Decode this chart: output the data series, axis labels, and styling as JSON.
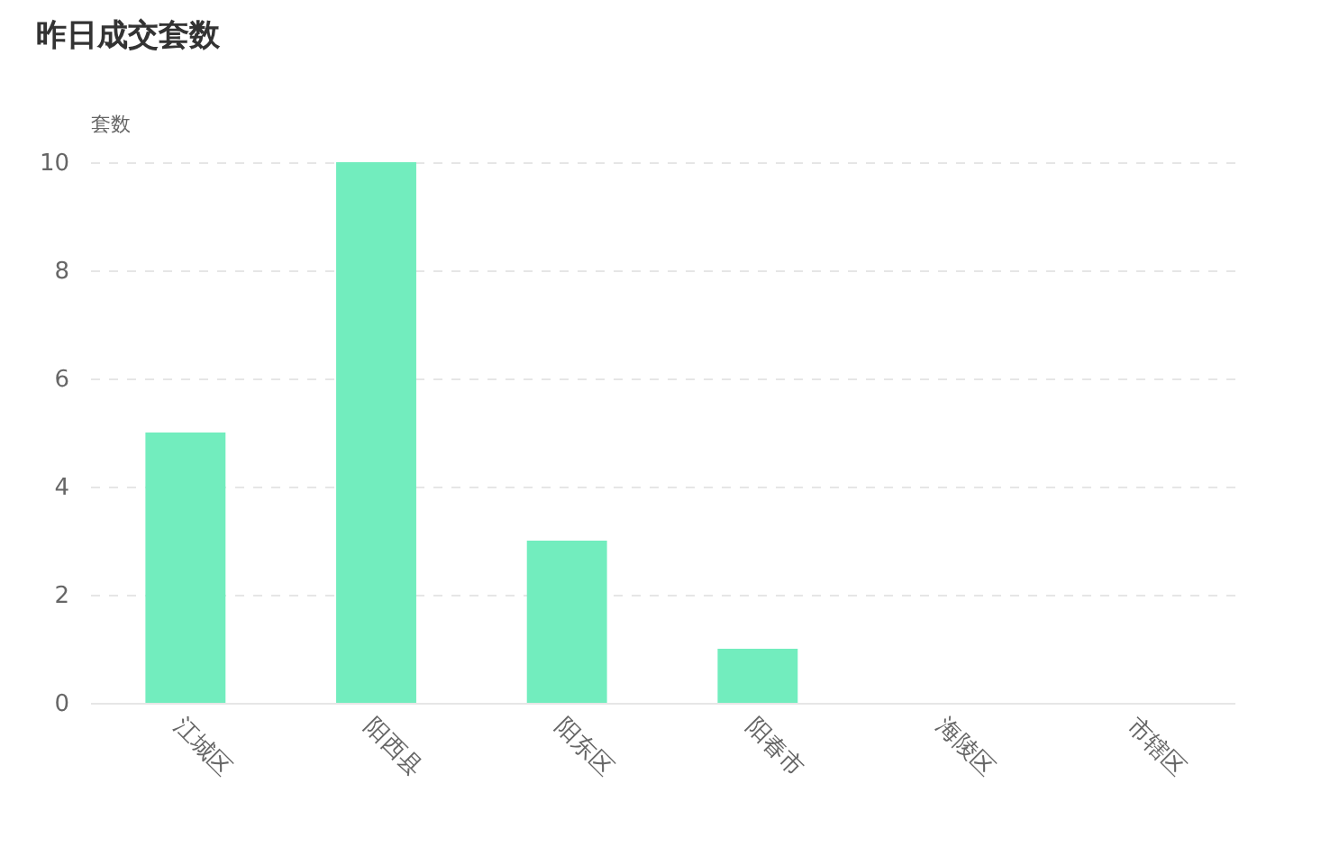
{
  "chart_data": {
    "type": "bar",
    "title": "昨日成交套数",
    "ylabel": "套数",
    "categories": [
      "江城区",
      "阳西县",
      "阳东区",
      "阳春市",
      "海陵区",
      "市辖区"
    ],
    "values": [
      5,
      10,
      3,
      1,
      0,
      0
    ],
    "color": "#72edbe",
    "ylim": [
      0,
      10
    ],
    "yticks": [
      0,
      2,
      4,
      6,
      8,
      10
    ],
    "grid": "y"
  }
}
